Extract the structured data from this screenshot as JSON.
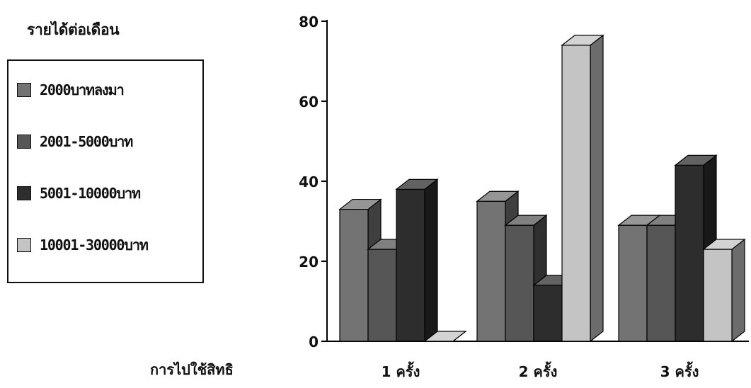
{
  "chart_data": {
    "type": "bar",
    "legend_title": "รายได้ต่อเดือน",
    "xlabel": "การไปใช้สิทธิ",
    "ylabel": "",
    "ylim": [
      0,
      80
    ],
    "y_ticks": [
      "0",
      "20",
      "40",
      "60",
      "80"
    ],
    "categories": [
      "1 ครั้ง",
      "2 ครั้ง",
      "3 ครั้ง"
    ],
    "series": [
      {
        "name": "2000บาทลงมา",
        "values": [
          33,
          35,
          29
        ],
        "color": "#737373"
      },
      {
        "name": "2001-5000บาท",
        "values": [
          23,
          29,
          29
        ],
        "color": "#565656"
      },
      {
        "name": "5001-10000บาท",
        "values": [
          38,
          14,
          44
        ],
        "color": "#2d2d2d"
      },
      {
        "name": "10001-30000บาท",
        "values": [
          0,
          74,
          23
        ],
        "color": "#c4c4c4"
      }
    ],
    "legend_position": "left",
    "grid": false,
    "three_d": true
  }
}
